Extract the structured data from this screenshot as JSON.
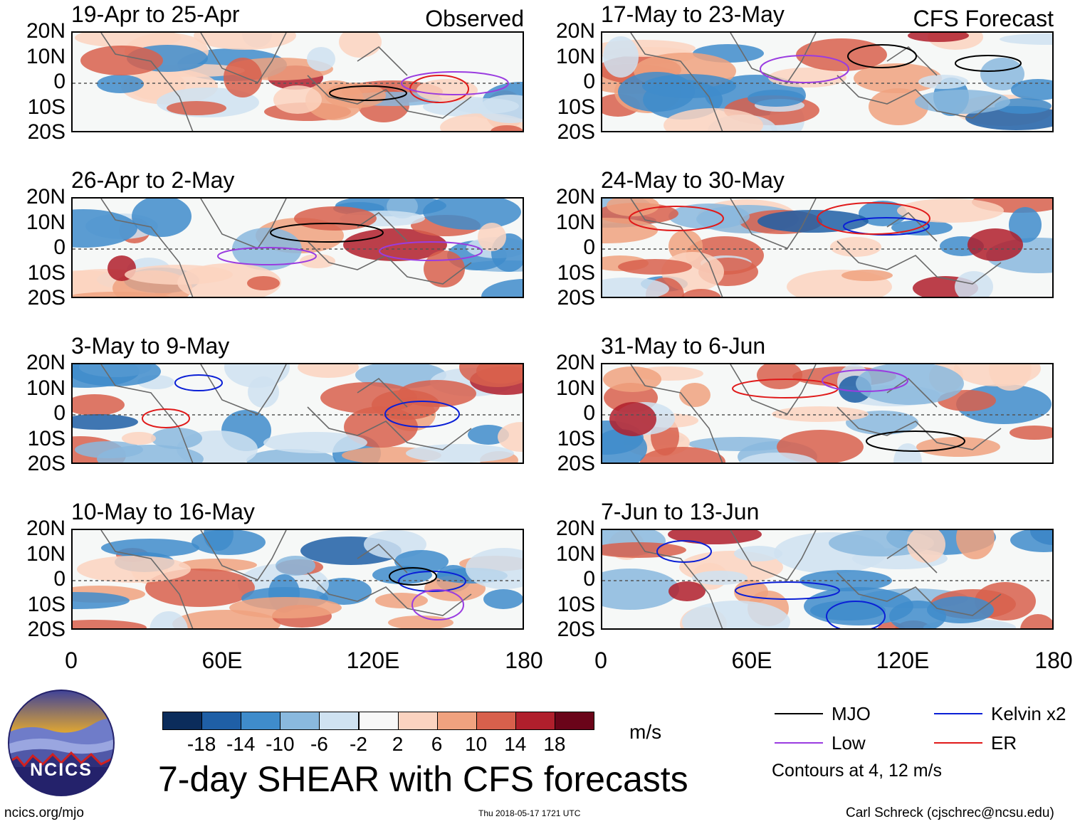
{
  "chart_data": {
    "type": "heatmap",
    "title": "7-day SHEAR with CFS forecasts",
    "units": "m/s",
    "x_axis": {
      "ticks": [
        "0",
        "60E",
        "120E",
        "180"
      ],
      "range": [
        0,
        180
      ]
    },
    "y_axis": {
      "ticks": [
        "20N",
        "10N",
        "0",
        "10S",
        "20S"
      ],
      "range": [
        -20,
        20
      ]
    },
    "colorbar": {
      "labels": [
        "-18",
        "-14",
        "-10",
        "-6",
        "-2",
        "2",
        "6",
        "10",
        "14",
        "18"
      ],
      "colors": [
        "#0b2c5b",
        "#1f5fa6",
        "#3f8ccb",
        "#8ab9de",
        "#cfe2f1",
        "#f8f8f8",
        "#fbd3c0",
        "#f0a27f",
        "#d8604c",
        "#b01f2c",
        "#6a0419"
      ]
    },
    "panels_observed": [
      {
        "period": "19-Apr to 25-Apr",
        "tag": "Observed"
      },
      {
        "period": "26-Apr to 2-May",
        "tag": ""
      },
      {
        "period": "3-May to 9-May",
        "tag": ""
      },
      {
        "period": "10-May to 16-May",
        "tag": ""
      }
    ],
    "panels_forecast": [
      {
        "period": "17-May to 23-May",
        "tag": "CFS Forecast"
      },
      {
        "period": "24-May to 30-May",
        "tag": ""
      },
      {
        "period": "31-May to 6-Jun",
        "tag": ""
      },
      {
        "period": "7-Jun to 13-Jun",
        "tag": ""
      }
    ],
    "legend": [
      {
        "label": "MJO",
        "color": "#000000"
      },
      {
        "label": "Kelvin x2",
        "color": "#0a1fd6"
      },
      {
        "label": "Low",
        "color": "#9a3ce0"
      },
      {
        "label": "ER",
        "color": "#e01a1a"
      }
    ],
    "contour_note": "Contours at 4, 12 m/s"
  },
  "footer": {
    "logo_text": "NCICS",
    "site": "ncics.org/mjo",
    "timestamp": "Thu 2018-05-17 1721 UTC",
    "author": "Carl Schreck (cjschrec@ncsu.edu)"
  }
}
